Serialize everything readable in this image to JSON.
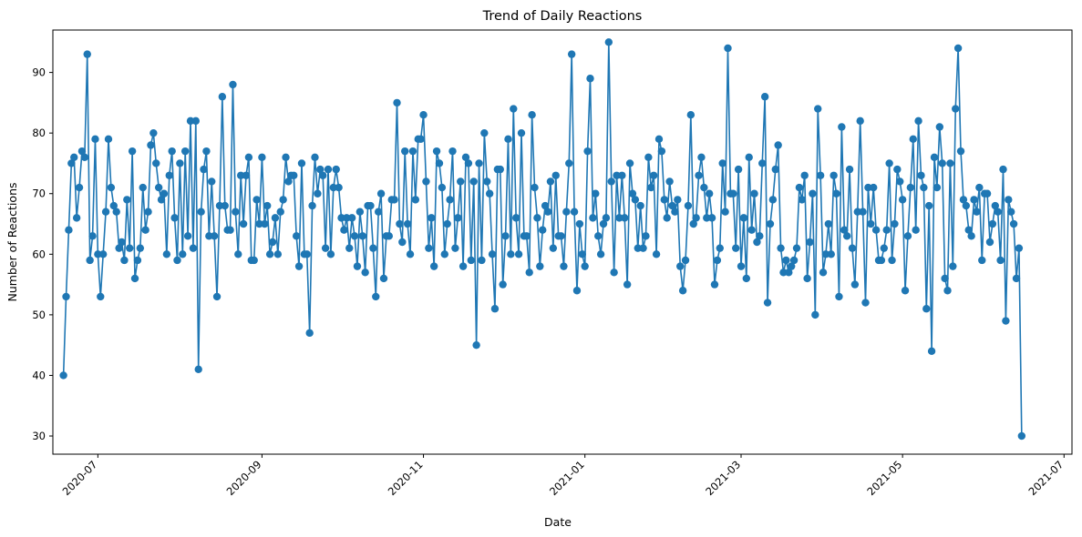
{
  "chart_data": {
    "type": "line",
    "title": "Trend of Daily Reactions",
    "xlabel": "Date",
    "ylabel": "Number of Reactions",
    "x_tick_labels": [
      "2020-07",
      "2020-09",
      "2020-11",
      "2021-01",
      "2021-03",
      "2021-05",
      "2021-07"
    ],
    "x_tick_dates": [
      "2020-07-01",
      "2020-09-01",
      "2020-11-01",
      "2021-01-01",
      "2021-03-01",
      "2021-05-01",
      "2021-07-01"
    ],
    "y_ticks": [
      30,
      40,
      50,
      60,
      70,
      80,
      90
    ],
    "ylim": [
      27,
      97
    ],
    "xlim": [
      "2020-06-14",
      "2021-07-04"
    ],
    "grid": false,
    "color": "#1f77b4",
    "marker": "circle",
    "start_date": "2020-06-18",
    "values": [
      40,
      53,
      64,
      75,
      76,
      66,
      71,
      77,
      76,
      93,
      59,
      63,
      79,
      60,
      53,
      60,
      67,
      79,
      71,
      68,
      67,
      61,
      62,
      59,
      69,
      61,
      77,
      56,
      59,
      61,
      71,
      64,
      67,
      78,
      80,
      75,
      71,
      69,
      70,
      60,
      73,
      77,
      66,
      59,
      75,
      60,
      77,
      63,
      82,
      61,
      82,
      41,
      67,
      74,
      77,
      63,
      72,
      63,
      53,
      68,
      86,
      68,
      64,
      64,
      88,
      67,
      60,
      73,
      65,
      73,
      76,
      59,
      59,
      69,
      65,
      76,
      65,
      68,
      60,
      62,
      66,
      60,
      67,
      69,
      76,
      72,
      73,
      73,
      63,
      58,
      75,
      60,
      60,
      47,
      68,
      76,
      70,
      74,
      73,
      61,
      74,
      60,
      71,
      74,
      71,
      66,
      64,
      66,
      61,
      66,
      63,
      58,
      67,
      63,
      57,
      68,
      68,
      61,
      53,
      67,
      70,
      56,
      63,
      63,
      69,
      69,
      85,
      65,
      62,
      77,
      65,
      60,
      77,
      69,
      79,
      79,
      83,
      72,
      61,
      66,
      58,
      77,
      75,
      71,
      60,
      65,
      69,
      77,
      61,
      66,
      72,
      58,
      76,
      75,
      59,
      72,
      45,
      75,
      59,
      80,
      72,
      70,
      60,
      51,
      74,
      74,
      55,
      63,
      79,
      60,
      84,
      66,
      60,
      80,
      63,
      63,
      57,
      83,
      71,
      66,
      58,
      64,
      68,
      67,
      72,
      61,
      73,
      63,
      63,
      58,
      67,
      75,
      93,
      67,
      54,
      65,
      60,
      58,
      77,
      89,
      66,
      70,
      63,
      60,
      65,
      66,
      95,
      72,
      57,
      73,
      66,
      73,
      66,
      55,
      75,
      70,
      69,
      61,
      68,
      61,
      63,
      76,
      71,
      73,
      60,
      79,
      77,
      69,
      66,
      72,
      68,
      67,
      69,
      58,
      54,
      59,
      68,
      83,
      65,
      66,
      73,
      76,
      71,
      66,
      70,
      66,
      55,
      59,
      61,
      75,
      67,
      94,
      70,
      70,
      61,
      74,
      58,
      66,
      56,
      76,
      64,
      70,
      62,
      63,
      75,
      86,
      52,
      65,
      69,
      74,
      78,
      61,
      57,
      59,
      57,
      58,
      59,
      61,
      71,
      69,
      73,
      56,
      62,
      70,
      50,
      84,
      73,
      57,
      60,
      65,
      60,
      73,
      70,
      53,
      81,
      64,
      63,
      74,
      61,
      55,
      67,
      82,
      67,
      52,
      71,
      65,
      71,
      64,
      59,
      59,
      61,
      64,
      75,
      59,
      65,
      74,
      72,
      69,
      54,
      63,
      71,
      79,
      64,
      82,
      73,
      71,
      51,
      68,
      44,
      76,
      71,
      81,
      75,
      56,
      54,
      75,
      58,
      84,
      94,
      77,
      69,
      68,
      64,
      63,
      69,
      67,
      71,
      59,
      70,
      70,
      62,
      65,
      68,
      67,
      59,
      74,
      49,
      69,
      67,
      65,
      56,
      61,
      30
    ]
  }
}
